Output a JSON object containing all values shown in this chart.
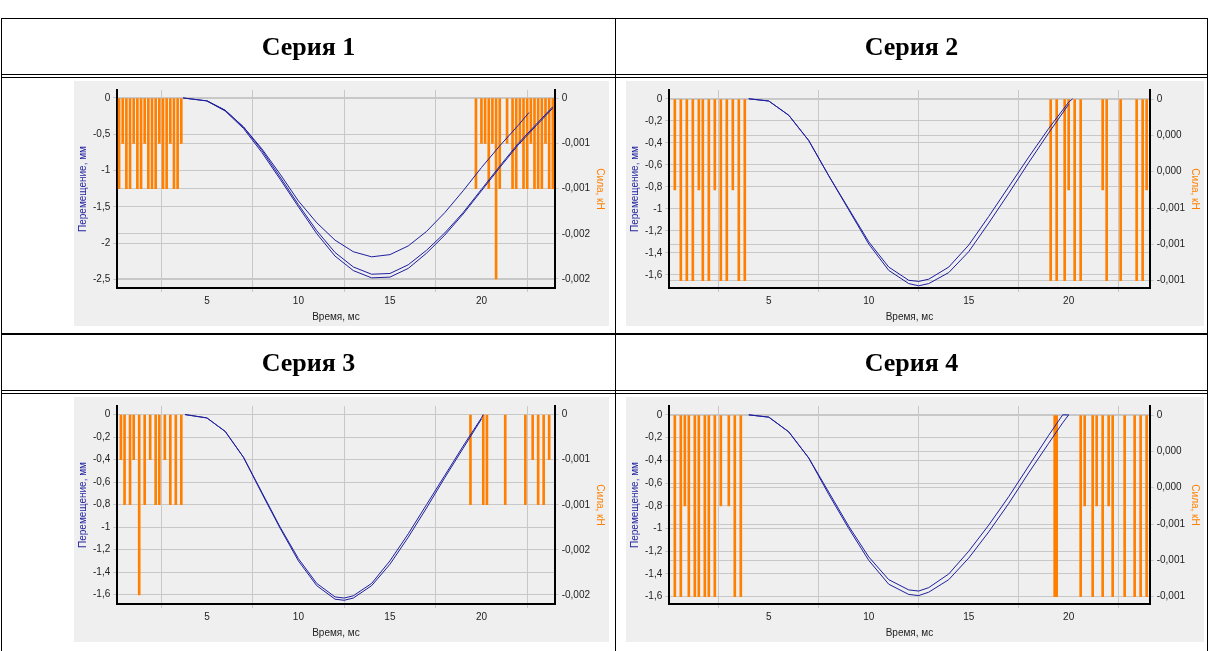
{
  "chart_data": [
    {
      "type": "line",
      "title": "Серия 1",
      "xlabel": "Время, мс",
      "ylabel": "Перемещение, мм",
      "y2label": "Сила, кН",
      "grid": true,
      "xlim": [
        0.1,
        24
      ],
      "xticks": [
        5,
        10,
        15,
        20
      ],
      "ylim": [
        -2.62,
        0.11
      ],
      "yticks": [
        0,
        {
          "value": -0.5,
          "label": "-0,5"
        },
        -1,
        {
          "value": -1.5,
          "label": "-1,5"
        },
        -2,
        {
          "value": -2.5,
          "label": "-2,5"
        }
      ],
      "y2lim": [
        -0.0021,
        9e-05
      ],
      "y2ticks": [
        {
          "value": 0,
          "label": "0"
        },
        {
          "value": -0.0005,
          "label": "-0,001"
        },
        {
          "value": -0.001,
          "label": "-0,001"
        },
        {
          "value": -0.0015,
          "label": "-0,002"
        },
        {
          "value": -0.002,
          "label": "-0,002"
        }
      ],
      "series": [
        {
          "type": "bar",
          "axis": "y2",
          "color": "#ff8000",
          "x": [
            0.2,
            0.4,
            0.6,
            0.8,
            1.0,
            1.2,
            1.4,
            1.6,
            1.8,
            2.0,
            2.2,
            2.4,
            2.6,
            2.8,
            3.0,
            3.2,
            3.4,
            3.6,
            19.7,
            20.0,
            20.2,
            20.4,
            20.6,
            20.8,
            21.0,
            21.4,
            21.7,
            21.9,
            22.1,
            22.3,
            22.5,
            22.7,
            22.9,
            23.1,
            23.3,
            23.5,
            23.7,
            23.9
          ],
          "values": [
            -0.001,
            -0.0005,
            -0.001,
            -0.001,
            -0.0005,
            -0.001,
            -0.001,
            -0.0005,
            -0.001,
            -0.001,
            -0.001,
            -0.0005,
            -0.001,
            -0.001,
            -0.0005,
            -0.001,
            -0.001,
            -0.0005,
            -0.001,
            -0.0005,
            -0.0005,
            -0.001,
            -0.0005,
            -0.002,
            -0.001,
            -0.0005,
            -0.001,
            -0.001,
            -0.0005,
            -0.001,
            -0.001,
            -0.0005,
            -0.001,
            -0.001,
            -0.001,
            -0.0005,
            -0.001,
            -0.001
          ]
        },
        {
          "color": "#1f1f9e",
          "x": [
            3.7,
            5,
            6,
            7,
            8,
            9,
            10,
            11,
            12,
            13,
            14,
            15,
            16,
            17,
            18,
            19,
            20,
            21,
            22,
            22.6
          ],
          "values": [
            0,
            -0.04,
            -0.17,
            -0.4,
            -0.7,
            -1.05,
            -1.42,
            -1.72,
            -1.96,
            -2.12,
            -2.19,
            -2.16,
            -2.04,
            -1.84,
            -1.58,
            -1.28,
            -0.96,
            -0.66,
            -0.38,
            -0.2
          ]
        },
        {
          "color": "#1f1f9e",
          "x": [
            3.7,
            5,
            6,
            7,
            8,
            9,
            10,
            11,
            12,
            13,
            14,
            15,
            16,
            17,
            18,
            19,
            20,
            21,
            22,
            23,
            23.9
          ],
          "values": [
            0,
            -0.04,
            -0.17,
            -0.4,
            -0.72,
            -1.09,
            -1.47,
            -1.83,
            -2.13,
            -2.33,
            -2.43,
            -2.42,
            -2.3,
            -2.1,
            -1.86,
            -1.58,
            -1.26,
            -0.94,
            -0.63,
            -0.36,
            -0.12
          ]
        },
        {
          "color": "#1f1f9e",
          "x": [
            5,
            6,
            7,
            8,
            9,
            10,
            11,
            12,
            13,
            14,
            15,
            16,
            17,
            18,
            19,
            20,
            21,
            22,
            23,
            23.9
          ],
          "values": [
            -0.04,
            -0.18,
            -0.42,
            -0.75,
            -1.12,
            -1.5,
            -1.87,
            -2.18,
            -2.38,
            -2.48,
            -2.47,
            -2.35,
            -2.14,
            -1.89,
            -1.6,
            -1.28,
            -0.96,
            -0.65,
            -0.38,
            -0.14
          ]
        }
      ]
    },
    {
      "type": "line",
      "title": "Серия 2",
      "xlabel": "Время, мс",
      "ylabel": "Перемещение, мм",
      "y2label": "Сила, кН",
      "grid": true,
      "xlim": [
        0.02,
        24.05
      ],
      "xticks": [
        5,
        10,
        15,
        20
      ],
      "ylim": [
        -1.72,
        0.08
      ],
      "yticks": [
        0,
        {
          "value": -0.2,
          "label": "-0,2"
        },
        {
          "value": -0.4,
          "label": "-0,4"
        },
        {
          "value": -0.6,
          "label": "-0,6"
        },
        {
          "value": -0.8,
          "label": "-0,8"
        },
        -1,
        {
          "value": -1.2,
          "label": "-1,2"
        },
        {
          "value": -1.4,
          "label": "-1,4"
        },
        {
          "value": -1.6,
          "label": "-1,6"
        }
      ],
      "y2lim": [
        -0.00104,
        5e-05
      ],
      "y2ticks": [
        {
          "value": 0,
          "label": "0"
        },
        {
          "value": -0.0002,
          "label": "0,000"
        },
        {
          "value": -0.0004,
          "label": "0,000"
        },
        {
          "value": -0.0006,
          "label": "-0,001"
        },
        {
          "value": -0.0008,
          "label": "-0,001"
        },
        {
          "value": -0.001,
          "label": "-0,001"
        }
      ],
      "series": [
        {
          "type": "bar",
          "axis": "y2",
          "color": "#ff8000",
          "x": [
            0.3,
            0.6,
            0.9,
            1.2,
            1.5,
            1.7,
            2.0,
            2.3,
            2.6,
            2.9,
            3.2,
            3.5,
            3.8,
            19.1,
            19.4,
            19.8,
            20.0,
            20.3,
            20.6,
            21.7,
            21.9,
            22.6,
            23.4,
            23.7,
            23.9
          ],
          "values": [
            -0.0005,
            -0.001,
            -0.001,
            -0.001,
            -0.0005,
            -0.001,
            -0.001,
            -0.0005,
            -0.001,
            -0.001,
            -0.0005,
            -0.001,
            -0.001,
            -0.001,
            -0.001,
            -0.001,
            -0.0005,
            -0.001,
            -0.001,
            -0.0005,
            -0.001,
            -0.001,
            -0.001,
            -0.001,
            -0.0005
          ]
        },
        {
          "color": "#1f1f9e",
          "x": [
            4,
            5,
            6,
            7,
            8,
            9,
            10,
            11,
            12,
            12.5,
            13,
            14,
            15,
            16,
            17,
            18,
            19,
            20,
            20.2
          ],
          "values": [
            0,
            -0.02,
            -0.15,
            -0.38,
            -0.7,
            -1.0,
            -1.3,
            -1.53,
            -1.65,
            -1.66,
            -1.64,
            -1.53,
            -1.33,
            -1.07,
            -0.8,
            -0.53,
            -0.27,
            -0.03,
            0
          ]
        },
        {
          "color": "#1f1f9e",
          "x": [
            4,
            5,
            6,
            7,
            8,
            9,
            10,
            11,
            12,
            12.5,
            13,
            14,
            15,
            16,
            17,
            18,
            19,
            20
          ],
          "values": [
            0,
            -0.02,
            -0.15,
            -0.38,
            -0.7,
            -1.01,
            -1.32,
            -1.56,
            -1.68,
            -1.7,
            -1.68,
            -1.58,
            -1.39,
            -1.13,
            -0.86,
            -0.58,
            -0.31,
            -0.05
          ]
        }
      ]
    },
    {
      "type": "line",
      "title": "Серия 3",
      "xlabel": "Время, мс",
      "ylabel": "Перемещение, мм",
      "y2label": "Сила, кН",
      "grid": true,
      "xlim": [
        0.1,
        24
      ],
      "xticks": [
        5,
        10,
        15,
        20
      ],
      "ylim": [
        -1.683,
        0.076
      ],
      "yticks": [
        0,
        {
          "value": -0.2,
          "label": "-0,2"
        },
        {
          "value": -0.4,
          "label": "-0,4"
        },
        {
          "value": -0.6,
          "label": "-0,6"
        },
        {
          "value": -0.8,
          "label": "-0,8"
        },
        -1,
        {
          "value": -1.2,
          "label": "-1,2"
        },
        {
          "value": -1.4,
          "label": "-1,4"
        },
        {
          "value": -1.6,
          "label": "-1,6"
        }
      ],
      "y2lim": [
        -0.0021,
        9.5e-05
      ],
      "y2ticks": [
        {
          "value": 0,
          "label": "0"
        },
        {
          "value": -0.0005,
          "label": "-0,001"
        },
        {
          "value": -0.001,
          "label": "-0,001"
        },
        {
          "value": -0.0015,
          "label": "-0,002"
        },
        {
          "value": -0.002,
          "label": "-0,002"
        }
      ],
      "series": [
        {
          "type": "bar",
          "axis": "y2",
          "color": "#ff8000",
          "x": [
            0.3,
            0.5,
            0.8,
            1.0,
            1.3,
            1.6,
            1.9,
            2.2,
            2.4,
            2.7,
            3.0,
            3.3,
            3.6,
            19.4,
            20.1,
            20.3,
            21.3,
            22.4,
            22.8,
            23.1,
            23.4,
            23.7
          ],
          "values": [
            -0.0005,
            -0.001,
            -0.001,
            -0.0005,
            -0.002,
            -0.001,
            -0.0005,
            -0.001,
            -0.001,
            -0.0005,
            -0.001,
            -0.001,
            -0.001,
            -0.001,
            -0.001,
            -0.001,
            -0.001,
            -0.001,
            -0.0005,
            -0.001,
            -0.001,
            -0.0005
          ]
        },
        {
          "color": "#1f1f9e",
          "x": [
            3.8,
            5,
            6,
            7,
            8,
            9,
            10,
            11,
            12,
            12.5,
            13,
            14,
            15,
            16,
            17,
            18,
            19,
            20,
            20.1
          ],
          "values": [
            0,
            -0.03,
            -0.15,
            -0.38,
            -0.69,
            -1.0,
            -1.28,
            -1.5,
            -1.62,
            -1.63,
            -1.61,
            -1.5,
            -1.3,
            -1.06,
            -0.8,
            -0.54,
            -0.28,
            -0.03,
            0
          ]
        },
        {
          "color": "#1f1f9e",
          "x": [
            3.8,
            5,
            6,
            7,
            8,
            9,
            10,
            11,
            12,
            12.5,
            13,
            14,
            15,
            16,
            17,
            18,
            19,
            20
          ],
          "values": [
            0,
            -0.03,
            -0.15,
            -0.38,
            -0.7,
            -1.01,
            -1.3,
            -1.52,
            -1.64,
            -1.65,
            -1.63,
            -1.52,
            -1.33,
            -1.09,
            -0.83,
            -0.56,
            -0.3,
            -0.04
          ]
        }
      ]
    },
    {
      "type": "line",
      "title": "Серия 4",
      "xlabel": "Время, мс",
      "ylabel": "Перемещение, мм",
      "y2label": "Сила, кН",
      "grid": true,
      "xlim": [
        0.02,
        24.05
      ],
      "xticks": [
        5,
        10,
        15,
        20
      ],
      "ylim": [
        -1.664,
        0.078
      ],
      "yticks": [
        0,
        {
          "value": -0.2,
          "label": "-0,2"
        },
        {
          "value": -0.4,
          "label": "-0,4"
        },
        {
          "value": -0.6,
          "label": "-0,6"
        },
        {
          "value": -0.8,
          "label": "-0,8"
        },
        -1,
        {
          "value": -1.2,
          "label": "-1,2"
        },
        {
          "value": -1.4,
          "label": "-1,4"
        },
        {
          "value": -1.6,
          "label": "-1,6"
        }
      ],
      "y2lim": [
        -0.00104,
        5e-05
      ],
      "y2ticks": [
        {
          "value": 0,
          "label": "0"
        },
        {
          "value": -0.0002,
          "label": "0,000"
        },
        {
          "value": -0.0004,
          "label": "0,000"
        },
        {
          "value": -0.0006,
          "label": "-0,001"
        },
        {
          "value": -0.0008,
          "label": "-0,001"
        },
        {
          "value": -0.001,
          "label": "-0,001"
        }
      ],
      "series": [
        {
          "type": "bar",
          "axis": "y2",
          "color": "#ff8000",
          "x": [
            0.3,
            0.6,
            0.8,
            1.0,
            1.3,
            1.5,
            1.8,
            2.0,
            2.3,
            2.6,
            3.0,
            3.3,
            3.6,
            19.3,
            19.4,
            20.6,
            20.8,
            21.2,
            21.4,
            21.7,
            22.0,
            22.2,
            22.8,
            23.3,
            23.6,
            23.9
          ],
          "values": [
            -0.001,
            -0.001,
            -0.0005,
            -0.001,
            -0.001,
            -0.001,
            -0.001,
            -0.001,
            -0.001,
            -0.0005,
            -0.0005,
            -0.001,
            -0.001,
            -0.001,
            -0.001,
            -0.001,
            -0.0005,
            -0.001,
            -0.0005,
            -0.001,
            -0.0005,
            -0.001,
            -0.001,
            -0.001,
            -0.001,
            -0.001
          ]
        },
        {
          "color": "#1f1f9e",
          "x": [
            4,
            5,
            6,
            7,
            8,
            9,
            10,
            11,
            12,
            12.5,
            13,
            14,
            15,
            16,
            17,
            18,
            19,
            19.7,
            20
          ],
          "values": [
            0,
            -0.02,
            -0.15,
            -0.38,
            -0.68,
            -0.98,
            -1.25,
            -1.45,
            -1.54,
            -1.55,
            -1.52,
            -1.4,
            -1.2,
            -0.97,
            -0.72,
            -0.45,
            -0.18,
            0,
            0
          ]
        },
        {
          "color": "#1f1f9e",
          "x": [
            4,
            5,
            6,
            7,
            8,
            9,
            10,
            11,
            12,
            12.5,
            13,
            14,
            15,
            16,
            17,
            18,
            19,
            19.7,
            20
          ],
          "values": [
            0,
            -0.02,
            -0.15,
            -0.38,
            -0.7,
            -1.0,
            -1.28,
            -1.49,
            -1.58,
            -1.59,
            -1.56,
            -1.45,
            -1.26,
            -1.03,
            -0.78,
            -0.51,
            -0.25,
            -0.07,
            0
          ]
        }
      ]
    }
  ]
}
